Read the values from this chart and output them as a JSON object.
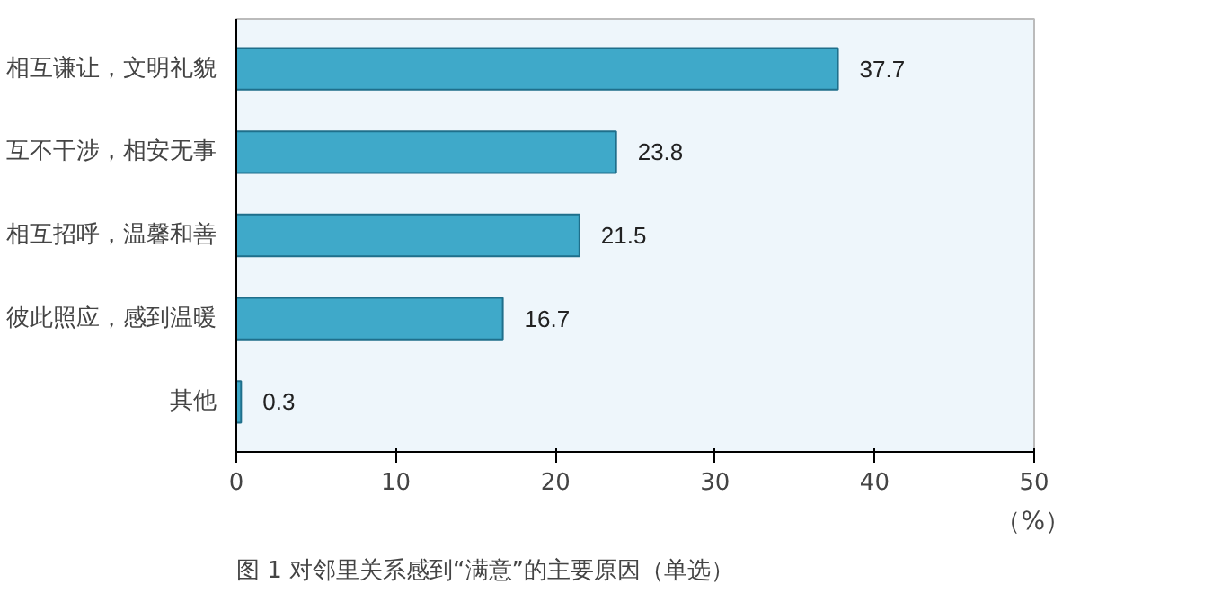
{
  "chart_data": {
    "type": "bar",
    "orientation": "horizontal",
    "title": "图 1 对邻里关系感到“满意”的主要原因（单选）",
    "xlabel": "（%）",
    "categories": [
      "相互谦让，文明礼貌",
      "互不干涉，相安无事",
      "相互招呼，温馨和善",
      "彼此照应，感到温暖",
      "其他"
    ],
    "values": [
      37.7,
      23.8,
      21.5,
      16.7,
      0.3
    ],
    "color": "#3fa9c9",
    "xlim": [
      0,
      50
    ],
    "xticks": [
      0,
      10,
      20,
      30,
      40,
      50
    ],
    "data_labels": true,
    "grid": false
  }
}
